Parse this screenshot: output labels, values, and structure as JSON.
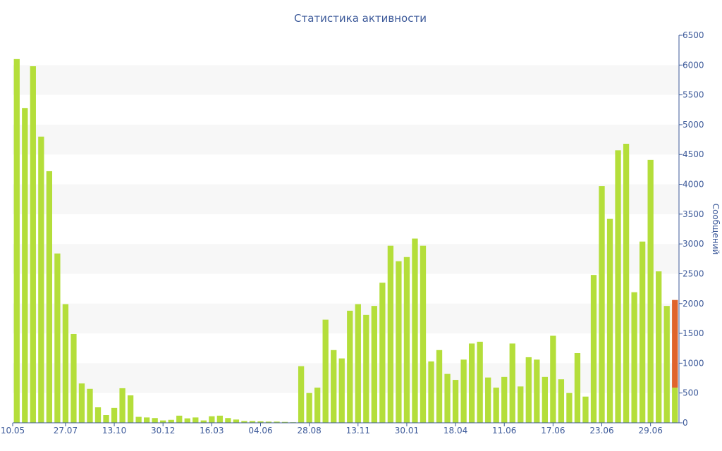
{
  "chart_data": {
    "type": "bar",
    "title": "Статистика активности",
    "xlabel": "",
    "ylabel": "Сообщений",
    "ylim": [
      0,
      6500
    ],
    "y_ticks": [
      0,
      500,
      1000,
      1500,
      2000,
      2500,
      3000,
      3500,
      4000,
      4500,
      5000,
      5500,
      6000,
      6500
    ],
    "x_tick_labels": [
      {
        "label": "10.05",
        "index": 0
      },
      {
        "label": "27.07",
        "index": 6
      },
      {
        "label": "13.10",
        "index": 12
      },
      {
        "label": "30.12",
        "index": 18
      },
      {
        "label": "16.03",
        "index": 24
      },
      {
        "label": "04.06",
        "index": 30
      },
      {
        "label": "28.08",
        "index": 36
      },
      {
        "label": "13.11",
        "index": 42
      },
      {
        "label": "30.01",
        "index": 48
      },
      {
        "label": "18.04",
        "index": 54
      },
      {
        "label": "11.06",
        "index": 60
      },
      {
        "label": "17.06",
        "index": 66
      },
      {
        "label": "23.06",
        "index": 72
      },
      {
        "label": "29.06",
        "index": 78
      }
    ],
    "grid": "alternating horizontal bands",
    "legend": "none",
    "colors": {
      "bar": "#b4de3a",
      "highlight": "#e0632c",
      "band": "#f7f7f7",
      "axis": "#3d5a9a"
    },
    "values": [
      6100,
      5280,
      5980,
      4800,
      4220,
      2840,
      1990,
      1490,
      660,
      570,
      260,
      130,
      250,
      580,
      460,
      100,
      90,
      80,
      40,
      50,
      120,
      75,
      90,
      40,
      110,
      120,
      80,
      55,
      30,
      30,
      25,
      20,
      20,
      15,
      10,
      950,
      500,
      590,
      1730,
      1220,
      1080,
      1880,
      1990,
      1810,
      1960,
      2350,
      2970,
      2710,
      2780,
      3090,
      2970,
      1030,
      1220,
      820,
      720,
      1060,
      1330,
      1360,
      760,
      590,
      770,
      1330,
      610,
      1100,
      1060,
      770,
      1460,
      730,
      500,
      1170,
      440,
      2480,
      3970,
      3420,
      4570,
      4680,
      2190,
      3040,
      4410,
      2540,
      1960,
      2060
    ],
    "highlight_last": {
      "total": 2060,
      "base": 590
    }
  }
}
